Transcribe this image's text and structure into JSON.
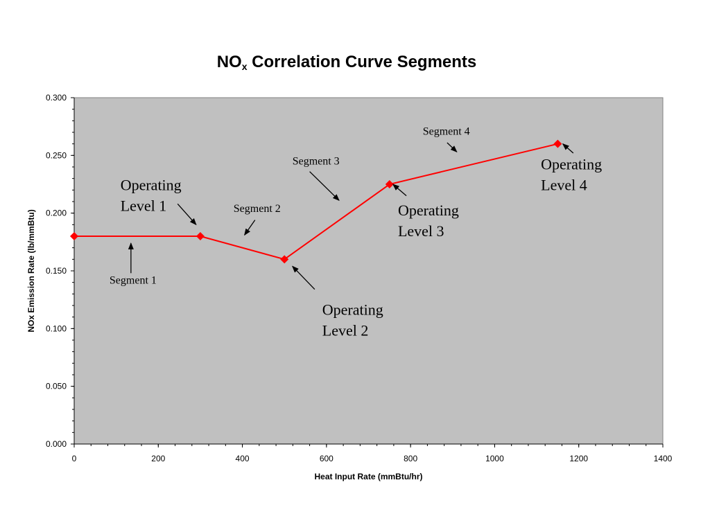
{
  "chart_data": {
    "type": "line",
    "title_main": "NO",
    "title_sub": "x",
    "title_rest": " Correlation Curve Segments",
    "xlabel": "Heat Input Rate (mmBtu/hr)",
    "ylabel": "NOx Emission Rate (lb/mmBtu)",
    "xlim": [
      0,
      1400
    ],
    "ylim": [
      0,
      0.3
    ],
    "x_ticks": [
      0,
      200,
      400,
      600,
      800,
      1000,
      1200,
      1400
    ],
    "y_ticks": [
      0.0,
      0.05,
      0.1,
      0.15,
      0.2,
      0.25,
      0.3
    ],
    "x_tick_labels": [
      "0",
      "200",
      "400",
      "600",
      "800",
      "1000",
      "1200",
      "1400"
    ],
    "y_tick_labels": [
      "0.000",
      "0.050",
      "0.100",
      "0.150",
      "0.200",
      "0.250",
      "0.300"
    ],
    "grid": false,
    "plot_background": "#c0c0c0",
    "series": [
      {
        "color": "#ff0000",
        "x": [
          0,
          300,
          500,
          750,
          1150
        ],
        "y": [
          0.18,
          0.18,
          0.16,
          0.225,
          0.26
        ]
      }
    ],
    "annotations": [
      {
        "id": "segment-1",
        "lines": [
          "Segment 1"
        ],
        "size": "small",
        "x": 140,
        "y": 0.139,
        "anchor": "middle",
        "arrow_from": [
          135,
          0.148
        ],
        "arrow_to": [
          135,
          0.174
        ]
      },
      {
        "id": "segment-2",
        "lines": [
          "Segment 2"
        ],
        "size": "small",
        "x": 435,
        "y": 0.201,
        "anchor": "middle",
        "arrow_from": [
          430,
          0.194
        ],
        "arrow_to": [
          405,
          0.181
        ]
      },
      {
        "id": "segment-3",
        "lines": [
          "Segment 3"
        ],
        "size": "small",
        "x": 575,
        "y": 0.242,
        "anchor": "middle",
        "arrow_from": [
          560,
          0.236
        ],
        "arrow_to": [
          630,
          0.211
        ]
      },
      {
        "id": "segment-4",
        "lines": [
          "Segment 4"
        ],
        "size": "small",
        "x": 885,
        "y": 0.268,
        "anchor": "middle",
        "arrow_from": [
          887,
          0.261
        ],
        "arrow_to": [
          910,
          0.253
        ]
      },
      {
        "id": "operating-level-1",
        "lines": [
          "Operating",
          "Level 1"
        ],
        "size": "large",
        "x": 110,
        "y": 0.22,
        "anchor": "start",
        "arrow_from": [
          246,
          0.208
        ],
        "arrow_to": [
          290,
          0.19
        ]
      },
      {
        "id": "operating-level-2",
        "lines": [
          "Operating",
          "Level 2"
        ],
        "size": "large",
        "x": 590,
        "y": 0.112,
        "anchor": "start",
        "arrow_from": [
          572,
          0.134
        ],
        "arrow_to": [
          519,
          0.154
        ]
      },
      {
        "id": "operating-level-3",
        "lines": [
          "Operating",
          "Level 3"
        ],
        "size": "large",
        "x": 770,
        "y": 0.198,
        "anchor": "start",
        "arrow_from": [
          790,
          0.215
        ],
        "arrow_to": [
          758,
          0.225
        ]
      },
      {
        "id": "operating-level-4",
        "lines": [
          "Operating",
          "Level 4"
        ],
        "size": "large",
        "x": 1110,
        "y": 0.238,
        "anchor": "start",
        "arrow_from": [
          1187,
          0.252
        ],
        "arrow_to": [
          1162,
          0.26
        ]
      }
    ]
  }
}
